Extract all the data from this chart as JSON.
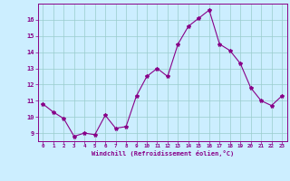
{
  "x": [
    0,
    1,
    2,
    3,
    4,
    5,
    6,
    7,
    8,
    9,
    10,
    11,
    12,
    13,
    14,
    15,
    16,
    17,
    18,
    19,
    20,
    21,
    22,
    23
  ],
  "y": [
    10.8,
    10.3,
    9.9,
    8.8,
    9.0,
    8.9,
    10.1,
    9.3,
    9.4,
    11.3,
    12.5,
    13.0,
    12.5,
    14.5,
    15.6,
    16.1,
    16.6,
    14.5,
    14.1,
    13.3,
    11.8,
    11.0,
    10.7,
    11.3
  ],
  "line_color": "#880088",
  "marker": "*",
  "marker_size": 3,
  "bg_color": "#cceeff",
  "grid_color": "#99cccc",
  "xlabel": "Windchill (Refroidissement éolien,°C)",
  "xlabel_color": "#880088",
  "ylabel_ticks": [
    9,
    10,
    11,
    12,
    13,
    14,
    15,
    16
  ],
  "xtick_labels": [
    "0",
    "1",
    "2",
    "3",
    "4",
    "5",
    "6",
    "7",
    "8",
    "9",
    "10",
    "11",
    "12",
    "13",
    "14",
    "15",
    "16",
    "17",
    "18",
    "19",
    "20",
    "21",
    "22",
    "23"
  ],
  "ylim": [
    8.5,
    17.0
  ],
  "xlim": [
    -0.5,
    23.5
  ],
  "tick_color": "#880088",
  "axis_color": "#880088"
}
